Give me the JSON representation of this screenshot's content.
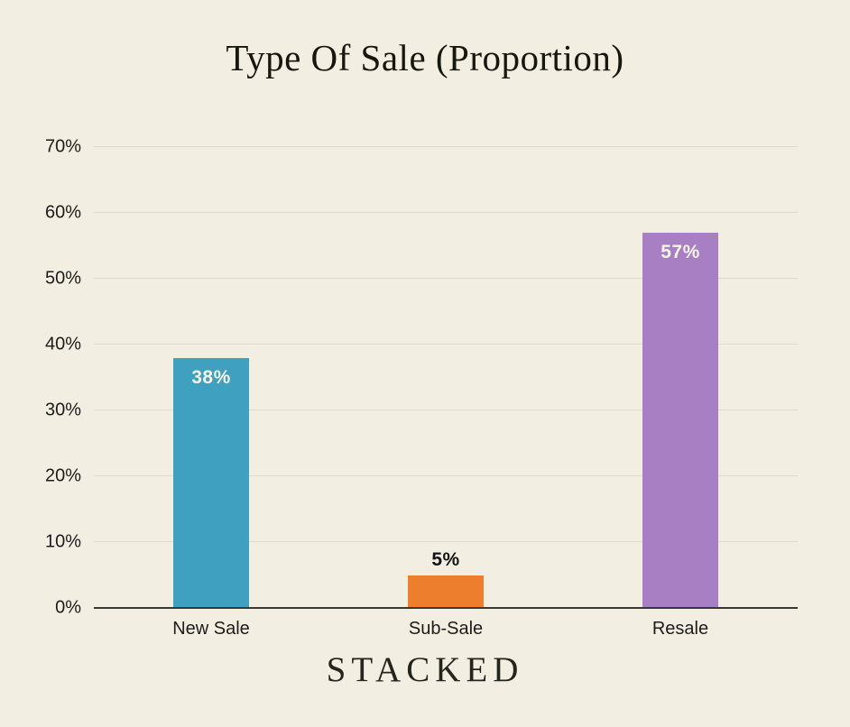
{
  "chart_data": {
    "type": "bar",
    "title": "Type Of Sale (Proportion)",
    "categories": [
      "New Sale",
      "Sub-Sale",
      "Resale"
    ],
    "values": [
      38,
      5,
      57
    ],
    "value_labels": [
      "38%",
      "5%",
      "57%"
    ],
    "bar_colors": [
      "#3fa0bf",
      "#ec7e2e",
      "#a87fc2"
    ],
    "value_label_positions": [
      "inside",
      "above",
      "inside"
    ],
    "value_label_colors": [
      "#f6f3e7",
      "#141414",
      "#f6f3e7"
    ],
    "xlabel": "",
    "ylabel": "",
    "ylim": [
      0,
      70
    ],
    "ytick_step": 10,
    "ytick_labels": [
      "0%",
      "10%",
      "20%",
      "30%",
      "40%",
      "50%",
      "60%",
      "70%"
    ],
    "grid": true,
    "legend": false
  },
  "footer": {
    "logo_text": "STACKED"
  },
  "colors": {
    "background": "#f2efe2",
    "gridline": "#dfdbcc",
    "axis_line": "#3a3931",
    "text": "#1d1c1a"
  }
}
